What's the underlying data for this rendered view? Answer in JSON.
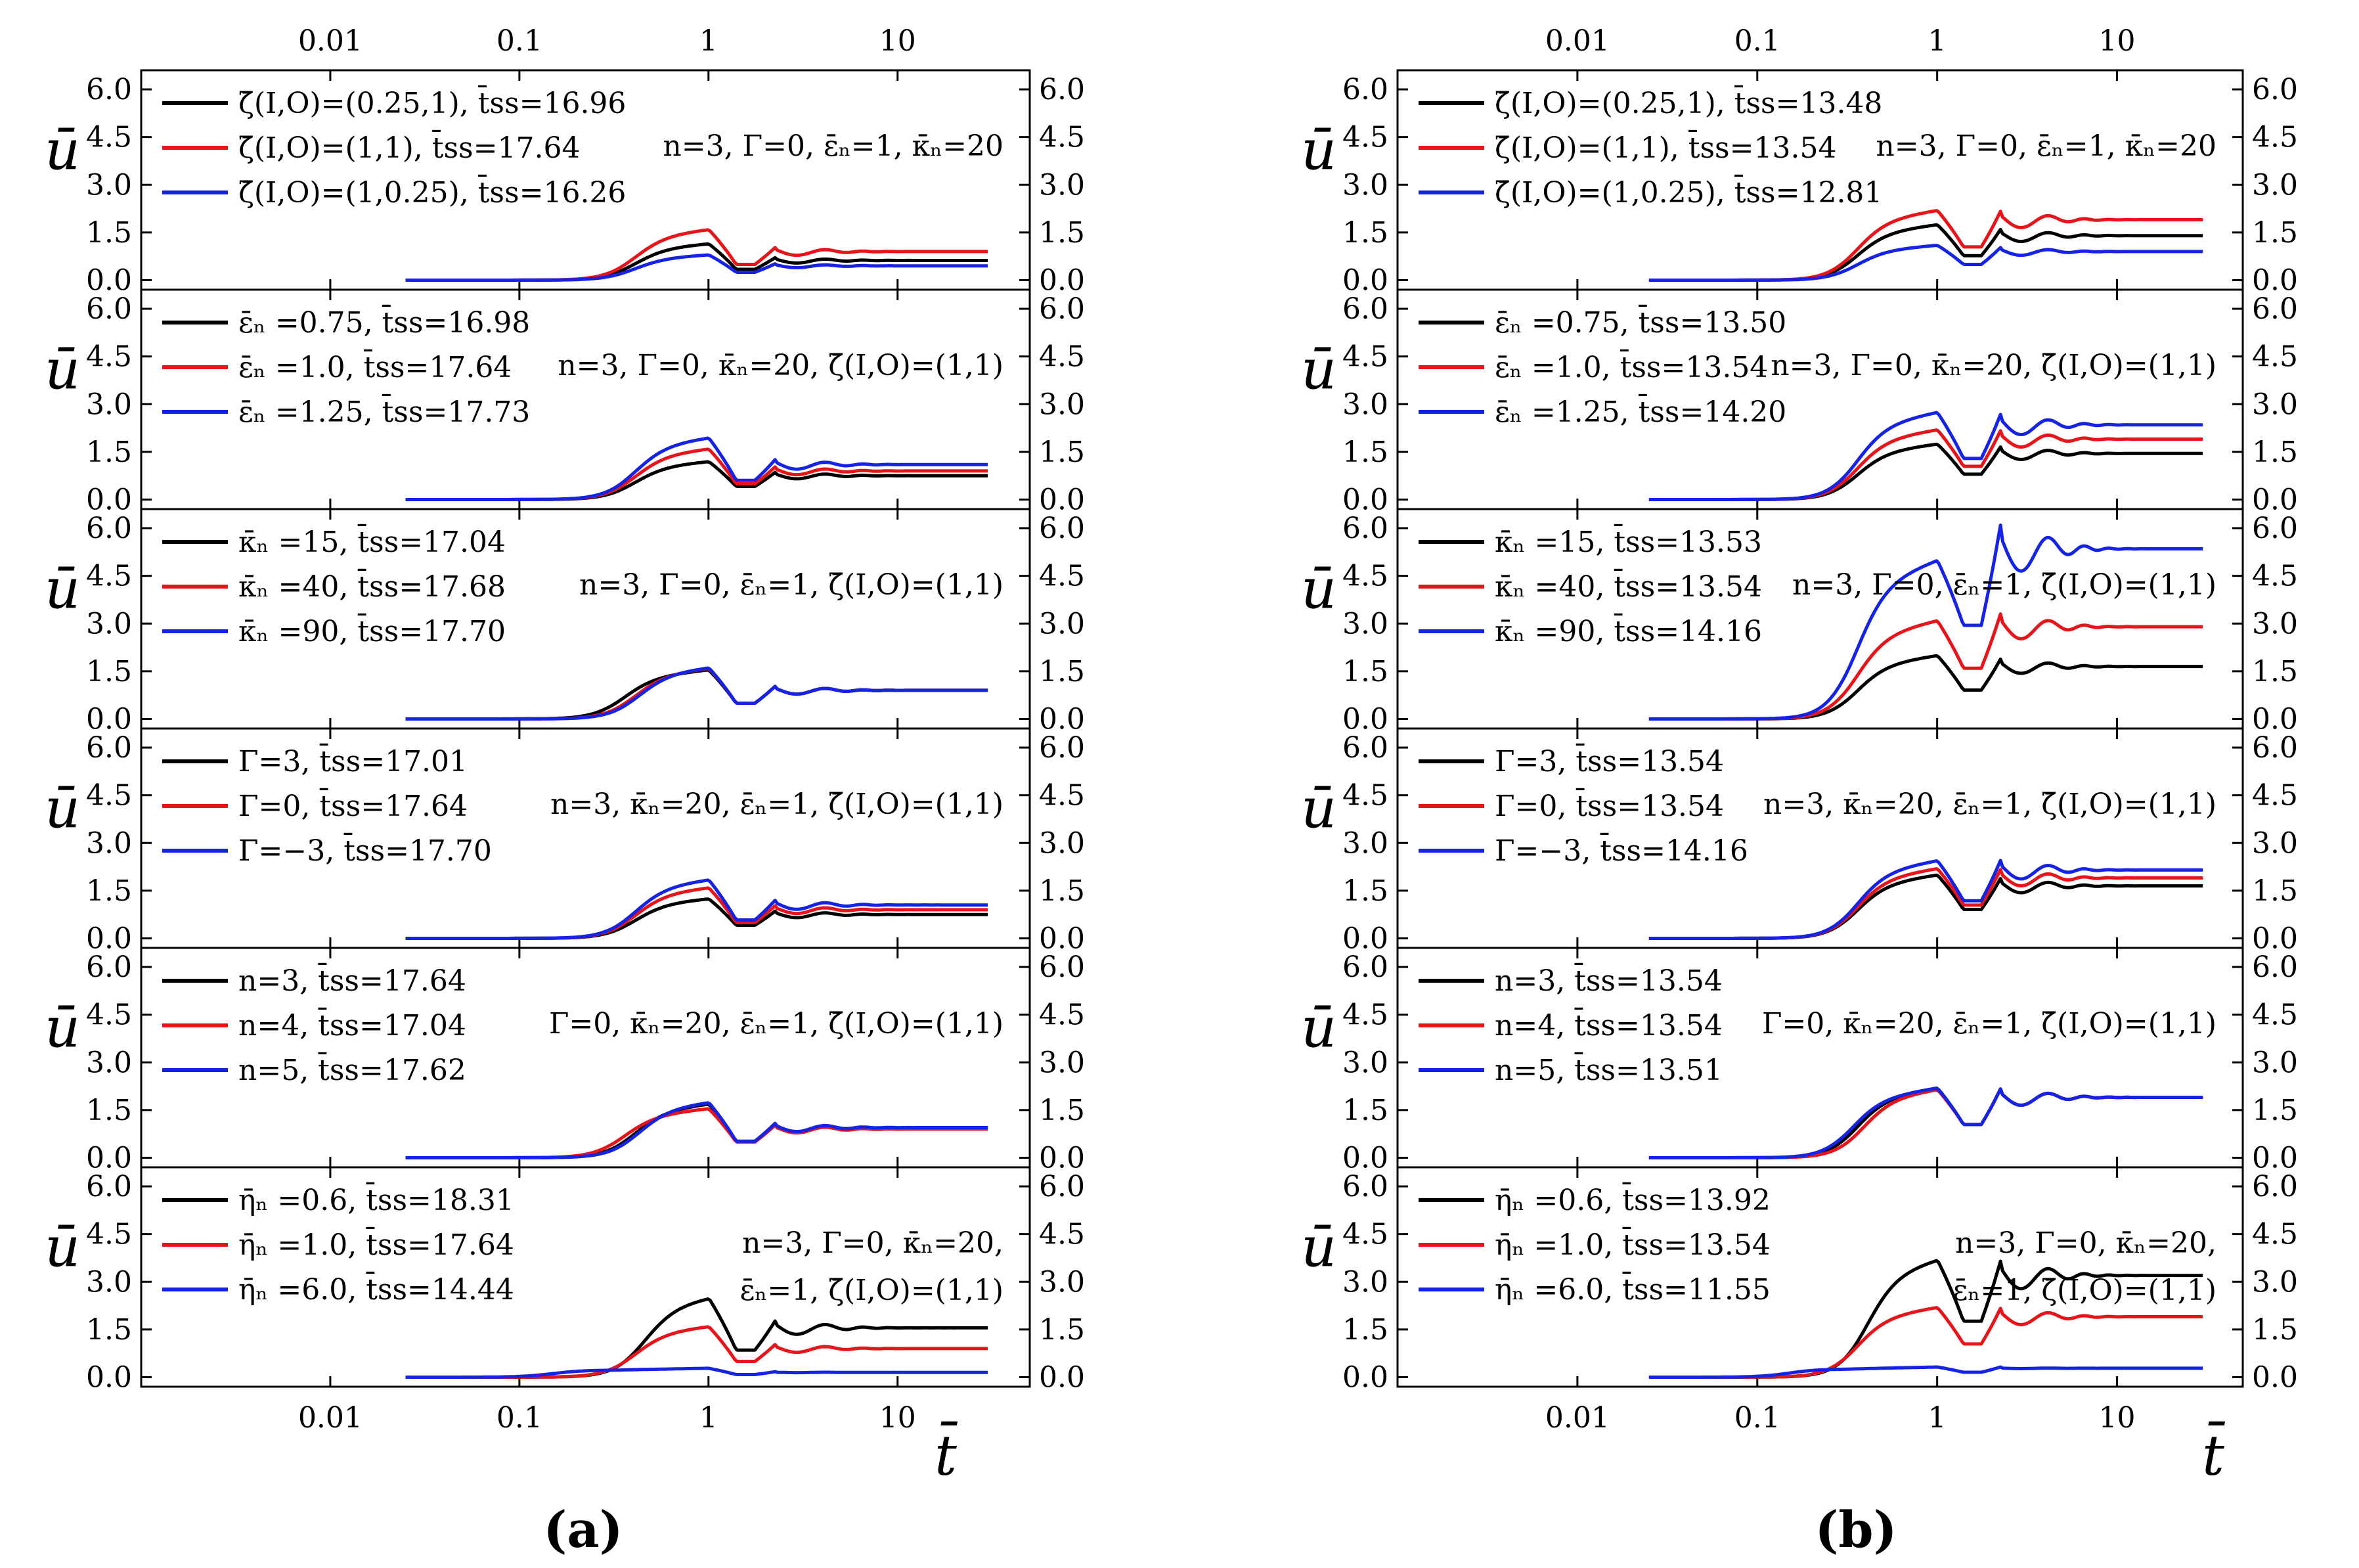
{
  "figure": {
    "panel_labels": [
      "(a)",
      "(b)"
    ],
    "y_axis_label": "ū",
    "x_axis_label": "t̄"
  },
  "chart_data": [
    {
      "type": "line",
      "column": "a",
      "row": 1,
      "x_scale": "log",
      "xlim": [
        0.001,
        50
      ],
      "ylim": [
        -0.3,
        6.6
      ],
      "xticks": [
        "0.01",
        "0.1",
        "1",
        "10"
      ],
      "yticks": [
        "0.0",
        "1.5",
        "3.0",
        "4.5",
        "6.0"
      ],
      "param_text": [
        "n=3, Γ=0, ε̄ₙ=1, κ̄ₙ=20"
      ],
      "series": [
        {
          "name": "ζ̄(I,O)=(0.25,1), t̄ss=16.96",
          "color": "#000000",
          "steady": 0.62,
          "plateau": 1.15,
          "amp": 1.0,
          "onset": 0.4
        },
        {
          "name": "ζ̄(I,O)=(1,1), t̄ss=17.64",
          "color": "#e8141a",
          "steady": 0.9,
          "plateau": 1.6,
          "amp": 1.0,
          "onset": 0.4
        },
        {
          "name": "ζ̄(I,O)=(1,0.25), t̄ss=16.26",
          "color": "#1423e6",
          "steady": 0.45,
          "plateau": 0.8,
          "amp": 1.0,
          "onset": 0.4
        }
      ]
    },
    {
      "type": "line",
      "column": "a",
      "row": 2,
      "x_scale": "log",
      "xlim": [
        0.001,
        50
      ],
      "ylim": [
        -0.3,
        6.6
      ],
      "xticks": [
        "0.01",
        "0.1",
        "1",
        "10"
      ],
      "yticks": [
        "0.0",
        "1.5",
        "3.0",
        "4.5",
        "6.0"
      ],
      "param_text": [
        "n=3, Γ=0, κ̄ₙ=20, ζ̄(I,O)=(1,1)"
      ],
      "series": [
        {
          "name": "ε̄ₙ =0.75, t̄ss=16.98",
          "color": "#000000",
          "steady": 0.75,
          "plateau": 1.2,
          "amp": 1.0,
          "onset": 0.4
        },
        {
          "name": "ε̄ₙ =1.0, t̄ss=17.64",
          "color": "#e8141a",
          "steady": 0.9,
          "plateau": 1.6,
          "amp": 1.0,
          "onset": 0.4
        },
        {
          "name": "ε̄ₙ =1.25, t̄ss=17.73",
          "color": "#1423e6",
          "steady": 1.1,
          "plateau": 1.95,
          "amp": 1.0,
          "onset": 0.4
        }
      ]
    },
    {
      "type": "line",
      "column": "a",
      "row": 3,
      "x_scale": "log",
      "xlim": [
        0.001,
        50
      ],
      "ylim": [
        -0.3,
        6.6
      ],
      "xticks": [
        "0.01",
        "0.1",
        "1",
        "10"
      ],
      "yticks": [
        "0.0",
        "1.5",
        "3.0",
        "4.5",
        "6.0"
      ],
      "param_text": [
        "n=3, Γ=0, ε̄ₙ=1, ζ̄(I,O)=(1,1)"
      ],
      "series": [
        {
          "name": "κ̄ₙ =15, t̄ss=17.04",
          "color": "#000000",
          "steady": 0.9,
          "plateau": 1.55,
          "amp": 1.0,
          "onset": 0.35
        },
        {
          "name": "κ̄ₙ =40, t̄ss=17.68",
          "color": "#e8141a",
          "steady": 0.9,
          "plateau": 1.6,
          "amp": 1.0,
          "onset": 0.4
        },
        {
          "name": "κ̄ₙ =90, t̄ss=17.70",
          "color": "#1423e6",
          "steady": 0.9,
          "plateau": 1.62,
          "amp": 1.0,
          "onset": 0.42
        }
      ]
    },
    {
      "type": "line",
      "column": "a",
      "row": 4,
      "x_scale": "log",
      "xlim": [
        0.001,
        50
      ],
      "ylim": [
        -0.3,
        6.6
      ],
      "xticks": [
        "0.01",
        "0.1",
        "1",
        "10"
      ],
      "yticks": [
        "0.0",
        "1.5",
        "3.0",
        "4.5",
        "6.0"
      ],
      "param_text": [
        "n=3, κ̄ₙ=20, ε̄ₙ=1, ζ̄(I,O)=(1,1)"
      ],
      "series": [
        {
          "name": "Γ=3, t̄ss=17.01",
          "color": "#000000",
          "steady": 0.75,
          "plateau": 1.25,
          "amp": 1.0,
          "onset": 0.4
        },
        {
          "name": "Γ=0, t̄ss=17.64",
          "color": "#e8141a",
          "steady": 0.9,
          "plateau": 1.6,
          "amp": 1.0,
          "onset": 0.4
        },
        {
          "name": "Γ=−3, t̄ss=17.70",
          "color": "#1423e6",
          "steady": 1.05,
          "plateau": 1.85,
          "amp": 1.0,
          "onset": 0.4
        }
      ]
    },
    {
      "type": "line",
      "column": "a",
      "row": 5,
      "x_scale": "log",
      "xlim": [
        0.001,
        50
      ],
      "ylim": [
        -0.3,
        6.6
      ],
      "xticks": [
        "0.01",
        "0.1",
        "1",
        "10"
      ],
      "yticks": [
        "0.0",
        "1.5",
        "3.0",
        "4.5",
        "6.0"
      ],
      "param_text": [
        "Γ=0, κ̄ₙ=20, ε̄ₙ=1, ζ̄(I,O)=(1,1)"
      ],
      "series": [
        {
          "name": "n=3, t̄ss=17.64",
          "color": "#000000",
          "steady": 0.92,
          "plateau": 1.7,
          "amp": 1.0,
          "onset": 0.4
        },
        {
          "name": "n=4, t̄ss=17.04",
          "color": "#e8141a",
          "steady": 0.9,
          "plateau": 1.55,
          "amp": 1.0,
          "onset": 0.35
        },
        {
          "name": "n=5, t̄ss=17.62",
          "color": "#1423e6",
          "steady": 0.95,
          "plateau": 1.75,
          "amp": 1.0,
          "onset": 0.42
        }
      ]
    },
    {
      "type": "line",
      "column": "a",
      "row": 6,
      "x_scale": "log",
      "xlim": [
        0.001,
        50
      ],
      "ylim": [
        -0.3,
        6.6
      ],
      "xticks": [
        "0.01",
        "0.1",
        "1",
        "10"
      ],
      "yticks": [
        "0.0",
        "1.5",
        "3.0",
        "4.5",
        "6.0"
      ],
      "param_text": [
        "n=3, Γ=0, κ̄ₙ=20,",
        "ε̄ₙ=1, ζ̄(I,O)=(1,1)"
      ],
      "series": [
        {
          "name": "η̄ₙ =0.6, t̄ss=18.31",
          "color": "#000000",
          "steady": 1.55,
          "plateau": 2.5,
          "amp": 1.0,
          "onset": 0.45
        },
        {
          "name": "η̄ₙ =1.0, t̄ss=17.64",
          "color": "#e8141a",
          "steady": 0.9,
          "plateau": 1.6,
          "amp": 1.0,
          "onset": 0.4
        },
        {
          "name": "η̄ₙ =6.0, t̄ss=14.44",
          "color": "#1423e6",
          "steady": 0.15,
          "plateau": 0.28,
          "amp": 0.4,
          "onset": 0.15
        }
      ]
    },
    {
      "type": "line",
      "column": "b",
      "row": 1,
      "x_scale": "log",
      "xlim": [
        0.001,
        50
      ],
      "ylim": [
        -0.3,
        6.6
      ],
      "xticks": [
        "0.01",
        "0.1",
        "1",
        "10"
      ],
      "yticks": [
        "0.0",
        "1.5",
        "3.0",
        "4.5",
        "6.0"
      ],
      "param_text": [
        "n=3, Γ=0, ε̄ₙ=1, κ̄ₙ=20"
      ],
      "series": [
        {
          "name": "ζ̄(I,O)=(0.25,1), t̄ss=13.48",
          "color": "#000000",
          "steady": 1.4,
          "plateau": 1.75,
          "amp": 1.0,
          "onset": 0.35
        },
        {
          "name": "ζ̄(I,O)=(1,1), t̄ss=13.54",
          "color": "#e8141a",
          "steady": 1.9,
          "plateau": 2.2,
          "amp": 1.0,
          "onset": 0.35
        },
        {
          "name": "ζ̄(I,O)=(1,0.25), t̄ss=12.81",
          "color": "#1423e6",
          "steady": 0.9,
          "plateau": 1.1,
          "amp": 1.0,
          "onset": 0.35
        }
      ]
    },
    {
      "type": "line",
      "column": "b",
      "row": 2,
      "x_scale": "log",
      "xlim": [
        0.001,
        50
      ],
      "ylim": [
        -0.3,
        6.6
      ],
      "xticks": [
        "0.01",
        "0.1",
        "1",
        "10"
      ],
      "yticks": [
        "0.0",
        "1.5",
        "3.0",
        "4.5",
        "6.0"
      ],
      "param_text": [
        "n=3, Γ=0, κ̄ₙ=20, ζ̄(I,O)=(1,1)"
      ],
      "series": [
        {
          "name": "ε̄ₙ =0.75, t̄ss=13.50",
          "color": "#000000",
          "steady": 1.45,
          "plateau": 1.75,
          "amp": 1.0,
          "onset": 0.35
        },
        {
          "name": "ε̄ₙ =1.0, t̄ss=13.54",
          "color": "#e8141a",
          "steady": 1.9,
          "plateau": 2.2,
          "amp": 1.0,
          "onset": 0.35
        },
        {
          "name": "ε̄ₙ =1.25, t̄ss=14.20",
          "color": "#1423e6",
          "steady": 2.35,
          "plateau": 2.75,
          "amp": 1.0,
          "onset": 0.35
        }
      ]
    },
    {
      "type": "line",
      "column": "b",
      "row": 3,
      "x_scale": "log",
      "xlim": [
        0.001,
        50
      ],
      "ylim": [
        -0.3,
        6.6
      ],
      "xticks": [
        "0.01",
        "0.1",
        "1",
        "10"
      ],
      "yticks": [
        "0.0",
        "1.5",
        "3.0",
        "4.5",
        "6.0"
      ],
      "param_text": [
        "n=3, Γ=0, ε̄ₙ=1, ζ̄(I,O)=(1,1)"
      ],
      "series": [
        {
          "name": "κ̄ₙ =15, t̄ss=13.53",
          "color": "#000000",
          "steady": 1.65,
          "plateau": 2.0,
          "amp": 1.0,
          "onset": 0.35
        },
        {
          "name": "κ̄ₙ =40, t̄ss=13.54",
          "color": "#e8141a",
          "steady": 2.9,
          "plateau": 3.1,
          "amp": 1.0,
          "onset": 0.35
        },
        {
          "name": "κ̄ₙ =90, t̄ss=14.16",
          "color": "#1423e6",
          "steady": 5.35,
          "plateau": 5.0,
          "amp": 1.0,
          "onset": 0.35
        }
      ]
    },
    {
      "type": "line",
      "column": "b",
      "row": 4,
      "x_scale": "log",
      "xlim": [
        0.001,
        50
      ],
      "ylim": [
        -0.3,
        6.6
      ],
      "xticks": [
        "0.01",
        "0.1",
        "1",
        "10"
      ],
      "yticks": [
        "0.0",
        "1.5",
        "3.0",
        "4.5",
        "6.0"
      ],
      "param_text": [
        "n=3, κ̄ₙ=20, ε̄ₙ=1, ζ̄(I,O)=(1,1)"
      ],
      "series": [
        {
          "name": "Γ=3, t̄ss=13.54",
          "color": "#000000",
          "steady": 1.65,
          "plateau": 2.0,
          "amp": 1.0,
          "onset": 0.35
        },
        {
          "name": "Γ=0, t̄ss=13.54",
          "color": "#e8141a",
          "steady": 1.9,
          "plateau": 2.2,
          "amp": 1.0,
          "onset": 0.35
        },
        {
          "name": "Γ=−3, t̄ss=14.16",
          "color": "#1423e6",
          "steady": 2.15,
          "plateau": 2.45,
          "amp": 1.0,
          "onset": 0.35
        }
      ]
    },
    {
      "type": "line",
      "column": "b",
      "row": 5,
      "x_scale": "log",
      "xlim": [
        0.001,
        50
      ],
      "ylim": [
        -0.3,
        6.6
      ],
      "xticks": [
        "0.01",
        "0.1",
        "1",
        "10"
      ],
      "yticks": [
        "0.0",
        "1.5",
        "3.0",
        "4.5",
        "6.0"
      ],
      "param_text": [
        "Γ=0, κ̄ₙ=20, ε̄ₙ=1, ζ̄(I,O)=(1,1)"
      ],
      "series": [
        {
          "name": "n=3, t̄ss=13.54",
          "color": "#000000",
          "steady": 1.9,
          "plateau": 2.2,
          "amp": 1.0,
          "onset": 0.35
        },
        {
          "name": "n=4, t̄ss=13.54",
          "color": "#e8141a",
          "steady": 1.9,
          "plateau": 2.15,
          "amp": 1.0,
          "onset": 0.38
        },
        {
          "name": "n=5, t̄ss=13.51",
          "color": "#1423e6",
          "steady": 1.9,
          "plateau": 2.2,
          "amp": 1.0,
          "onset": 0.33
        }
      ]
    },
    {
      "type": "line",
      "column": "b",
      "row": 6,
      "x_scale": "log",
      "xlim": [
        0.001,
        50
      ],
      "ylim": [
        -0.3,
        6.6
      ],
      "xticks": [
        "0.01",
        "0.1",
        "1",
        "10"
      ],
      "yticks": [
        "0.0",
        "1.5",
        "3.0",
        "4.5",
        "6.0"
      ],
      "param_text": [
        "n=3, Γ=0, κ̄ₙ=20,",
        "ε̄ₙ=1, ζ̄(I,O)=(1,1)"
      ],
      "series": [
        {
          "name": "η̄ₙ =0.6, t̄ss=13.92",
          "color": "#000000",
          "steady": 3.2,
          "plateau": 3.7,
          "amp": 1.0,
          "onset": 0.4
        },
        {
          "name": "η̄ₙ =1.0, t̄ss=13.54",
          "color": "#e8141a",
          "steady": 1.9,
          "plateau": 2.2,
          "amp": 1.0,
          "onset": 0.35
        },
        {
          "name": "η̄ₙ =6.0, t̄ss=11.55",
          "color": "#1423e6",
          "steady": 0.28,
          "plateau": 0.32,
          "amp": 0.3,
          "onset": 0.15
        }
      ]
    }
  ]
}
